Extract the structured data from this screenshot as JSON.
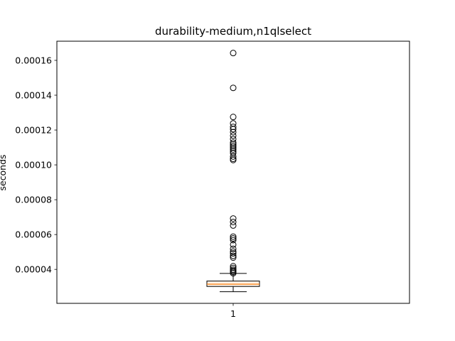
{
  "chart_data": {
    "type": "box",
    "title": "durability-medium,n1qlselect",
    "xlabel": "",
    "ylabel": "seconds",
    "categories": [
      "1"
    ],
    "yticks": [
      "0.00004",
      "0.00006",
      "0.00008",
      "0.00010",
      "0.00012",
      "0.00014",
      "0.00016"
    ],
    "ytick_values": [
      4e-05,
      6e-05,
      8e-05,
      0.0001,
      0.00012,
      0.00014,
      0.00016
    ],
    "ylim": [
      2.05e-05,
      0.000171
    ],
    "grid": false,
    "box": {
      "whisker_low": 2.72e-05,
      "q1": 3.02e-05,
      "median": 3.15e-05,
      "q3": 3.33e-05,
      "whisker_high": 3.77e-05
    },
    "outliers": [
      0.0001642,
      0.0001442,
      0.0001275,
      0.0001238,
      0.0001218,
      0.0001205,
      0.0001188,
      0.0001168,
      0.0001148,
      0.0001128,
      0.0001118,
      0.0001108,
      0.0001098,
      0.0001088,
      0.0001078,
      0.0001068,
      0.0001048,
      0.0001035,
      0.0001028,
      6.92e-05,
      6.72e-05,
      6.52e-05,
      5.88e-05,
      5.78e-05,
      5.68e-05,
      5.42e-05,
      5.18e-05,
      5.02e-05,
      4.92e-05,
      4.78e-05,
      4.68e-05,
      4.18e-05,
      4.08e-05,
      3.98e-05,
      3.92e-05,
      3.85e-05,
      3.78e-05
    ],
    "colors": {
      "median": "#ff7f0e",
      "box": "#000000",
      "box_fill": "#fff2e6",
      "outlier": "#000000"
    }
  }
}
